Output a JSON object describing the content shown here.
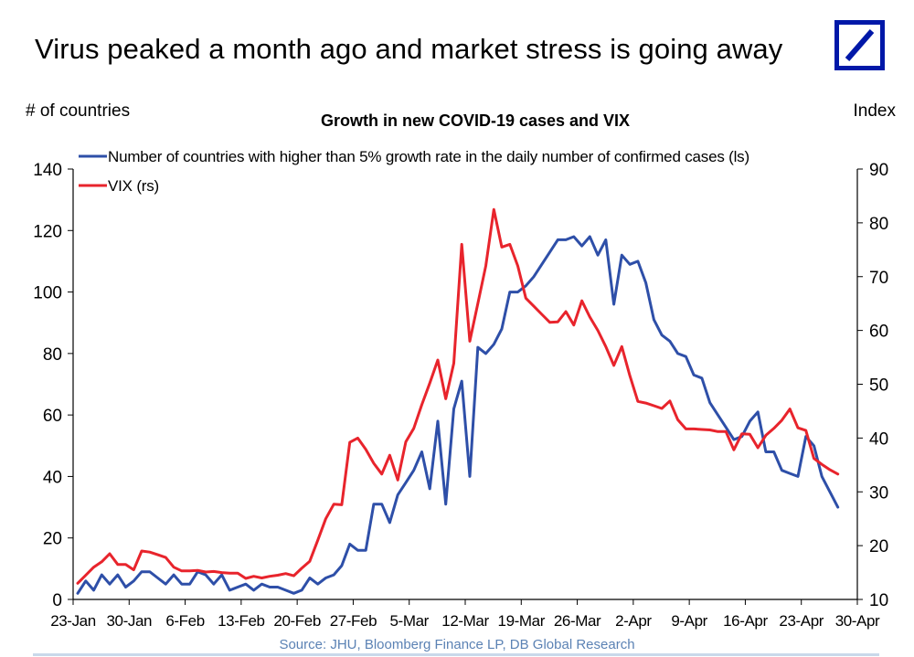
{
  "slide_title": "Virus peaked a month ago and market stress is going away",
  "logo_icon": "deutsche-bank-logo-icon",
  "brand_color": "#0018a8",
  "source": "Source: JHU, Bloomberg Finance LP, DB Global Research",
  "chart_data": {
    "type": "line",
    "title": "Growth in new COVID-19 cases and VIX",
    "ylabel_left": "# of countries",
    "ylabel_right": "Index",
    "ylim_left": [
      0,
      140
    ],
    "ylim_right": [
      10,
      90
    ],
    "yticks_left": [
      "0",
      "20",
      "40",
      "60",
      "80",
      "100",
      "120",
      "140"
    ],
    "yticks_right": [
      "10",
      "20",
      "30",
      "40",
      "50",
      "60",
      "70",
      "80",
      "90"
    ],
    "xticks": [
      "23-Jan",
      "30-Jan",
      "6-Feb",
      "13-Feb",
      "20-Feb",
      "27-Feb",
      "5-Mar",
      "12-Mar",
      "19-Mar",
      "26-Mar",
      "2-Apr",
      "9-Apr",
      "16-Apr",
      "23-Apr",
      "30-Apr"
    ],
    "grid": false,
    "legend_position": "top-left",
    "series": [
      {
        "name": "Number of countries with higher than 5% growth rate in the daily number of confirmed cases (ls)",
        "axis": "left",
        "color": "#2e4fa8",
        "values": [
          2,
          6,
          3,
          8,
          5,
          8,
          4,
          6,
          9,
          9,
          7,
          5,
          8,
          5,
          5,
          9,
          8,
          5,
          8,
          3,
          4,
          5,
          3,
          5,
          4,
          4,
          3,
          2,
          3,
          7,
          5,
          7,
          8,
          11,
          18,
          16,
          16,
          31,
          31,
          25,
          34,
          38,
          42,
          48,
          36,
          58,
          31,
          62,
          71,
          40,
          82,
          80,
          83,
          88,
          100,
          100,
          102,
          105,
          109,
          113,
          117,
          117,
          118,
          115,
          118,
          112,
          117,
          96,
          112,
          109,
          110,
          103,
          91,
          86,
          84,
          80,
          79,
          73,
          72,
          64,
          60,
          56,
          52,
          53,
          58,
          61,
          48,
          48,
          42,
          41,
          40,
          53,
          50,
          40,
          35,
          30
        ]
      },
      {
        "name": "VIX (rs)",
        "axis": "right",
        "color": "#e8242c",
        "values": [
          13,
          14.5,
          16,
          17,
          18.5,
          16.5,
          16.5,
          15.5,
          19,
          18.8,
          18.3,
          17.8,
          16,
          15.3,
          15.3,
          15.4,
          15.1,
          15.2,
          15,
          14.9,
          14.9,
          13.9,
          14.3,
          14,
          14.3,
          14.5,
          14.8,
          14.4,
          15.8,
          17.1,
          21,
          25,
          27.7,
          27.6,
          39.2,
          40,
          37.9,
          35.3,
          33.3,
          36.8,
          32.2,
          39.3,
          41.8,
          46.2,
          50.2,
          54.5,
          47.3,
          53.9,
          76,
          58,
          65,
          72,
          82.5,
          75.5,
          76,
          72,
          66,
          64.5,
          63,
          61.5,
          61.6,
          63.5,
          61,
          65.5,
          62.5,
          60,
          57,
          53.5,
          57,
          51.6,
          46.8,
          46.5,
          46,
          45.5,
          46.9,
          43.4,
          41.7,
          41.7,
          41.6,
          41.5,
          41.2,
          41.2,
          37.8,
          40.8,
          40.7,
          38.2,
          40.5,
          41.8,
          43.3,
          45.4,
          41.9,
          41.4,
          36.2,
          35.1,
          34.1,
          33.3
        ]
      }
    ]
  }
}
